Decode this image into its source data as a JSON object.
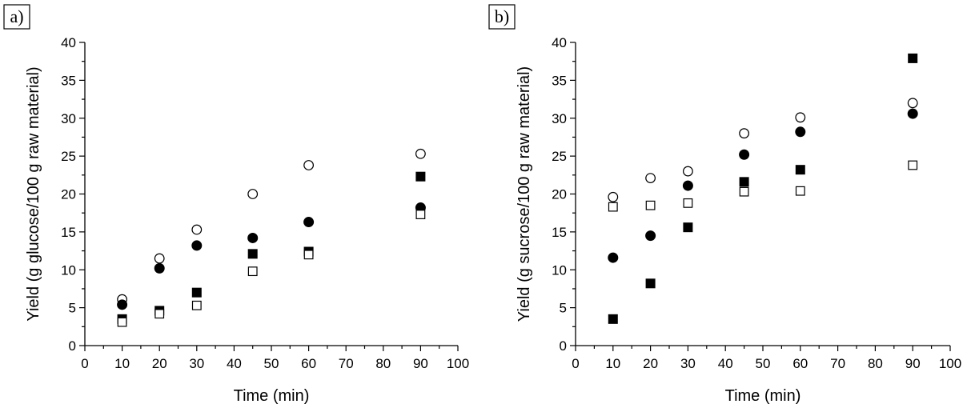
{
  "chart_data": [
    {
      "type": "scatter",
      "panel_label": "a)",
      "xlabel": "Time (min)",
      "ylabel": "Yield (g glucose/100 g raw material)",
      "xlim": [
        0,
        100
      ],
      "ylim": [
        0,
        40
      ],
      "xticks": [
        0,
        10,
        20,
        30,
        40,
        50,
        60,
        70,
        80,
        90,
        100
      ],
      "yticks": [
        0,
        5,
        10,
        15,
        20,
        25,
        30,
        35,
        40
      ],
      "series": [
        {
          "marker": "circle-open",
          "color": "#000000",
          "x": [
            10,
            20,
            30,
            45,
            60,
            90
          ],
          "y": [
            6.1,
            11.5,
            15.3,
            20.0,
            23.8,
            25.3
          ]
        },
        {
          "marker": "circle-filled",
          "color": "#000000",
          "x": [
            10,
            20,
            30,
            45,
            60,
            90
          ],
          "y": [
            5.4,
            10.2,
            13.2,
            14.2,
            16.3,
            18.2
          ]
        },
        {
          "marker": "square-filled",
          "color": "#000000",
          "x": [
            10,
            20,
            30,
            45,
            60,
            90
          ],
          "y": [
            3.5,
            4.6,
            7.0,
            12.1,
            12.4,
            22.3
          ]
        },
        {
          "marker": "square-open",
          "color": "#000000",
          "x": [
            10,
            20,
            30,
            45,
            60,
            90
          ],
          "y": [
            3.1,
            4.2,
            5.3,
            9.8,
            12.0,
            17.3
          ]
        }
      ]
    },
    {
      "type": "scatter",
      "panel_label": "b)",
      "xlabel": "Time (min)",
      "ylabel": "Yield (g sucrose/100 g raw material)",
      "xlim": [
        0,
        100
      ],
      "ylim": [
        0,
        40
      ],
      "xticks": [
        0,
        10,
        20,
        30,
        40,
        50,
        60,
        70,
        80,
        90,
        100
      ],
      "yticks": [
        0,
        5,
        10,
        15,
        20,
        25,
        30,
        35,
        40
      ],
      "series": [
        {
          "marker": "circle-open",
          "color": "#000000",
          "x": [
            10,
            20,
            30,
            45,
            60,
            90
          ],
          "y": [
            19.6,
            22.1,
            23.0,
            28.0,
            30.1,
            32.0
          ]
        },
        {
          "marker": "circle-filled",
          "color": "#000000",
          "x": [
            10,
            20,
            30,
            45,
            60,
            90
          ],
          "y": [
            11.6,
            14.5,
            21.1,
            25.2,
            28.2,
            30.6
          ]
        },
        {
          "marker": "square-filled",
          "color": "#000000",
          "x": [
            10,
            20,
            30,
            45,
            60,
            90
          ],
          "y": [
            3.5,
            8.2,
            15.6,
            21.6,
            23.2,
            37.9
          ]
        },
        {
          "marker": "square-open",
          "color": "#000000",
          "x": [
            10,
            20,
            30,
            45,
            60,
            90
          ],
          "y": [
            18.3,
            18.5,
            18.8,
            20.3,
            20.4,
            23.8
          ]
        }
      ]
    }
  ]
}
